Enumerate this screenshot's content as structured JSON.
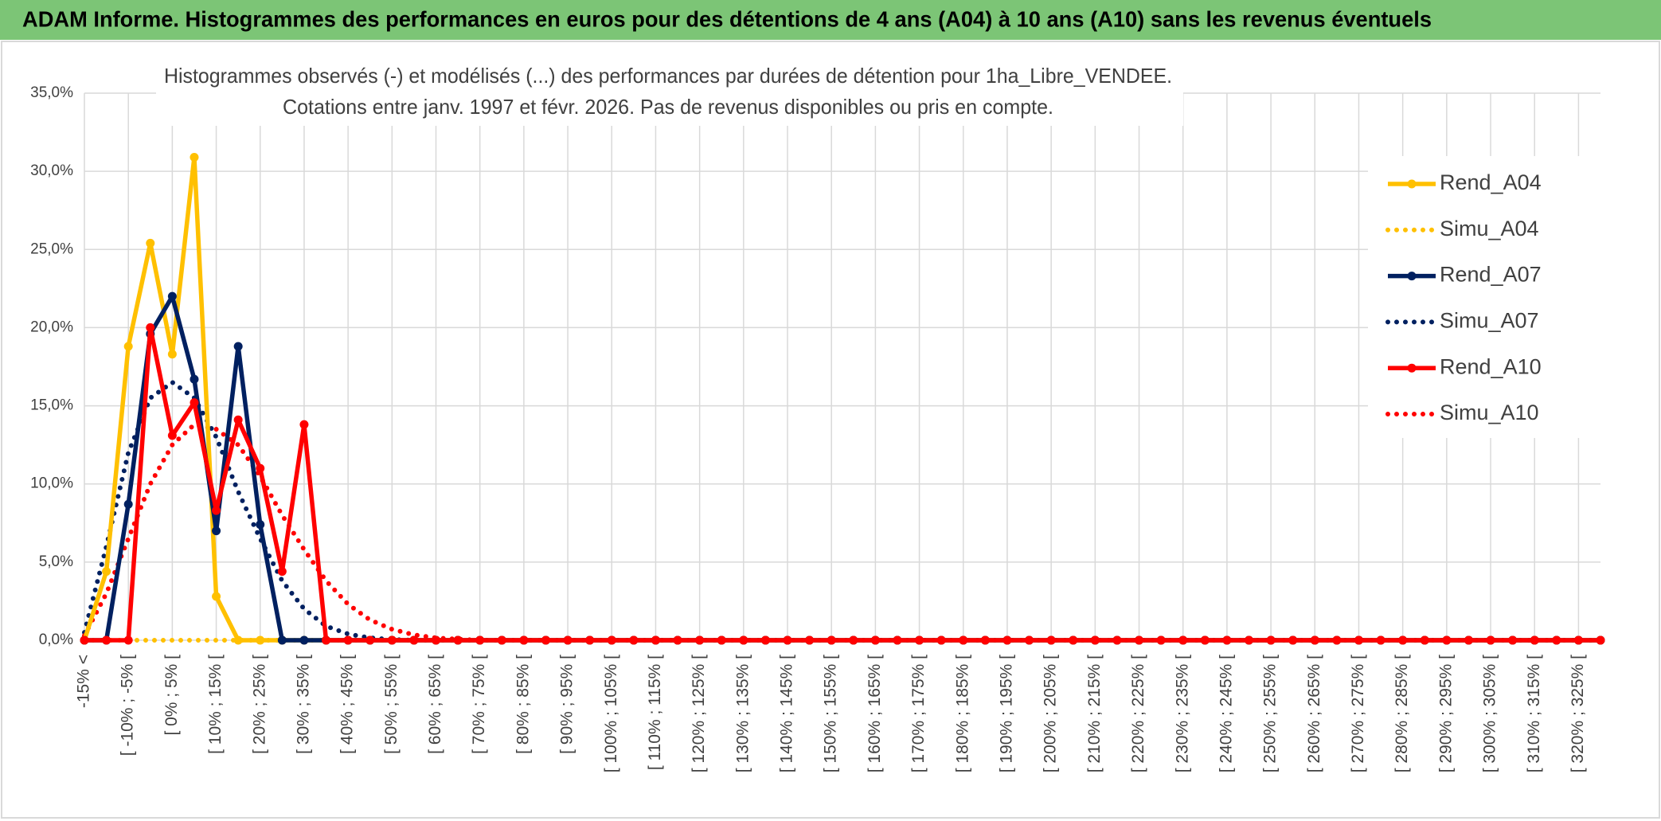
{
  "header": {
    "title": "ADAM Informe. Histogrammes des performances en euros pour des détentions de 4 ans (A04) à 10 ans (A10) sans les revenus éventuels"
  },
  "chart_data": {
    "type": "line",
    "title": "Histogrammes observés (-) et modélisés (...) des performances par durées de détention pour 1ha_Libre_VENDEE.",
    "subtitle": "Cotations entre janv. 1997 et févr. 2026. Pas de revenus disponibles ou pris en compte.",
    "categories": [
      "-15% <",
      null,
      "[ -10% ; -5% [",
      null,
      "[ 0% ; 5% [",
      null,
      "[ 10% ; 15% [",
      null,
      "[ 20% ; 25% [",
      null,
      "[ 30% ; 35% [",
      null,
      "[ 40% ; 45% [",
      null,
      "[ 50% ; 55% [",
      null,
      "[ 60% ; 65% [",
      null,
      "[ 70% ; 75% [",
      null,
      "[ 80% ; 85% [",
      null,
      "[ 90% ; 95% [",
      null,
      "[ 100% ; 105% [",
      null,
      "[ 110% ; 115% [",
      null,
      "[ 120% ; 125% [",
      null,
      "[ 130% ; 135% [",
      null,
      "[ 140% ; 145% [",
      null,
      "[ 150% ; 155% [",
      null,
      "[ 160% ; 165% [",
      null,
      "[ 170% ; 175% [",
      null,
      "[ 180% ; 185% [",
      null,
      "[ 190% ; 195% [",
      null,
      "[ 200% ; 205% [",
      null,
      "[ 210% ; 215% [",
      null,
      "[ 220% ; 225% [",
      null,
      "[ 230% ; 235% [",
      null,
      "[ 240% ; 245% [",
      null,
      "[ 250% ; 255% [",
      null,
      "[ 260% ; 265% [",
      null,
      "[ 270% ; 275% [",
      null,
      "[ 280% ; 285% [",
      null,
      "[ 290% ; 295% [",
      null,
      "[ 300% ; 305% [",
      null,
      "[ 310% ; 315% [",
      null,
      "[ 320% ; 325% [",
      null
    ],
    "series": [
      {
        "name": "Rend_A04",
        "color": "#FFC000",
        "style": "solid",
        "markers": true,
        "values": [
          0,
          4.4,
          18.8,
          25.4,
          18.3,
          30.9,
          2.8,
          0,
          0,
          0,
          0,
          0,
          0,
          0,
          0,
          0,
          0,
          0,
          0,
          0,
          0,
          0,
          0,
          0,
          0,
          0,
          0,
          0,
          0,
          0,
          0,
          0,
          0,
          0,
          0,
          0,
          0,
          0,
          0,
          0,
          0,
          0,
          0,
          0,
          0,
          0,
          0,
          0,
          0,
          0,
          0,
          0,
          0,
          0,
          0,
          0,
          0,
          0,
          0,
          0,
          0,
          0,
          0,
          0,
          0,
          0,
          0,
          0,
          0,
          0
        ]
      },
      {
        "name": "Simu_A04",
        "color": "#FFC000",
        "style": "dotted",
        "markers": false,
        "values": [
          0,
          0,
          0,
          0,
          0,
          0,
          0,
          0,
          0,
          0,
          0,
          0,
          0,
          0,
          0,
          0,
          0,
          0,
          0,
          0,
          0,
          0,
          0,
          0,
          0,
          0,
          0,
          0,
          0,
          0,
          0,
          0,
          0,
          0,
          0,
          0,
          0,
          0,
          0,
          0,
          0,
          0,
          0,
          0,
          0,
          0,
          0,
          0,
          0,
          0,
          0,
          0,
          0,
          0,
          0,
          0,
          0,
          0,
          0,
          0,
          0,
          0,
          0,
          0,
          0,
          0,
          0,
          0,
          0,
          0
        ]
      },
      {
        "name": "Rend_A07",
        "color": "#002060",
        "style": "solid",
        "markers": true,
        "values": [
          0,
          0,
          8.7,
          19.6,
          22.0,
          16.7,
          7.0,
          18.8,
          7.4,
          0,
          0,
          0,
          0,
          0,
          0,
          0,
          0,
          0,
          0,
          0,
          0,
          0,
          0,
          0,
          0,
          0,
          0,
          0,
          0,
          0,
          0,
          0,
          0,
          0,
          0,
          0,
          0,
          0,
          0,
          0,
          0,
          0,
          0,
          0,
          0,
          0,
          0,
          0,
          0,
          0,
          0,
          0,
          0,
          0,
          0,
          0,
          0,
          0,
          0,
          0,
          0,
          0,
          0,
          0,
          0,
          0,
          0,
          0,
          0,
          0
        ]
      },
      {
        "name": "Simu_A07",
        "color": "#002060",
        "style": "dotted",
        "markers": false,
        "values": [
          0.5,
          6,
          12,
          15.5,
          16.5,
          15.5,
          13,
          9.5,
          6.5,
          3.8,
          2,
          0.9,
          0.4,
          0.15,
          0.05,
          0,
          0,
          0,
          0,
          0,
          0,
          0,
          0,
          0,
          0,
          0,
          0,
          0,
          0,
          0,
          0,
          0,
          0,
          0,
          0,
          0,
          0,
          0,
          0,
          0,
          0,
          0,
          0,
          0,
          0,
          0,
          0,
          0,
          0,
          0,
          0,
          0,
          0,
          0,
          0,
          0,
          0,
          0,
          0,
          0,
          0,
          0,
          0,
          0,
          0,
          0,
          0,
          0,
          0,
          0
        ]
      },
      {
        "name": "Rend_A10",
        "color": "#FF0000",
        "style": "solid",
        "markers": true,
        "values": [
          0,
          0,
          0,
          20,
          13.1,
          15.2,
          8.3,
          14.1,
          11,
          4.4,
          13.8,
          0,
          0,
          0,
          0,
          0,
          0,
          0,
          0,
          0,
          0,
          0,
          0,
          0,
          0,
          0,
          0,
          0,
          0,
          0,
          0,
          0,
          0,
          0,
          0,
          0,
          0,
          0,
          0,
          0,
          0,
          0,
          0,
          0,
          0,
          0,
          0,
          0,
          0,
          0,
          0,
          0,
          0,
          0,
          0,
          0,
          0,
          0,
          0,
          0,
          0,
          0,
          0,
          0,
          0,
          0,
          0,
          0,
          0,
          0
        ]
      },
      {
        "name": "Simu_A10",
        "color": "#FF0000",
        "style": "dotted",
        "markers": false,
        "values": [
          0.3,
          3,
          6.5,
          10,
          12.5,
          13.8,
          13.5,
          12.5,
          10.5,
          8,
          5.8,
          3.8,
          2.3,
          1.3,
          0.7,
          0.35,
          0.15,
          0.07,
          0,
          0,
          0,
          0,
          0,
          0,
          0,
          0,
          0,
          0,
          0,
          0,
          0,
          0,
          0,
          0,
          0,
          0,
          0,
          0,
          0,
          0,
          0,
          0,
          0,
          0,
          0,
          0,
          0,
          0,
          0,
          0,
          0,
          0,
          0,
          0,
          0,
          0,
          0,
          0,
          0,
          0,
          0,
          0,
          0,
          0,
          0,
          0,
          0,
          0,
          0,
          0
        ]
      }
    ],
    "ylim": [
      0,
      35
    ],
    "yticks": [
      {
        "value": 0,
        "label": "0,0%"
      },
      {
        "value": 5,
        "label": "5,0%"
      },
      {
        "value": 10,
        "label": "10,0%"
      },
      {
        "value": 15,
        "label": "15,0%"
      },
      {
        "value": 20,
        "label": "20,0%"
      },
      {
        "value": 25,
        "label": "25,0%"
      },
      {
        "value": 30,
        "label": "30,0%"
      },
      {
        "value": 35,
        "label": "35,0%"
      }
    ],
    "grid": true,
    "legend": "right"
  }
}
